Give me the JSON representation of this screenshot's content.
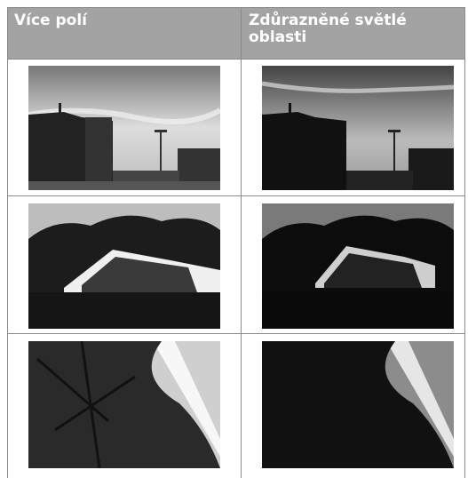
{
  "table": {
    "header": [
      "Více polí",
      "Zdůrazněné světlé oblasti"
    ]
  }
}
